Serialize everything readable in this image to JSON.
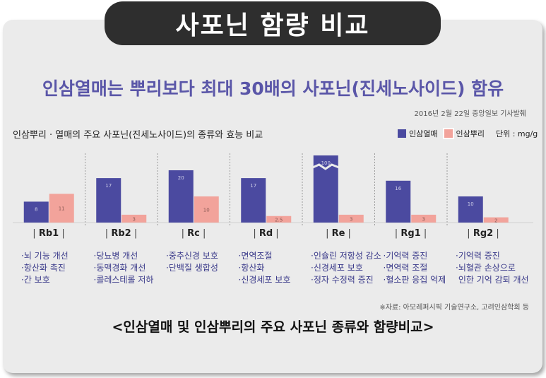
{
  "title": "사포닌 함량 비교",
  "headline": "인삼열매는 뿌리보다 최대 30배의 사포닌(진세노사이드) 함유",
  "source": "2016년 2월 22일 중앙일보 기사발췌",
  "subtitle": "인삼뿌리 · 열매의 주요 사포닌(진세노사이드)의 종류와 효능 비교",
  "unit": "단위 : mg/g",
  "colors": {
    "fruit": "#4b4aa0",
    "root": "#f2a39b"
  },
  "note": "※자료: 아모레퍼시픽 기술연구소, 고려인삼학회 등",
  "caption": "<인삼열매 및 인삼뿌리의 주요 사포닌 종류와 함량비교>",
  "chart_data": {
    "type": "bar",
    "categories": [
      "Rb1",
      "Rb2",
      "Rc",
      "Rd",
      "Re",
      "Rg1",
      "Rg2"
    ],
    "series": [
      {
        "name": "인삼열매",
        "values": [
          8,
          17,
          20,
          17,
          100,
          16,
          10
        ],
        "labels": [
          "8",
          "17",
          "20",
          "17",
          "100",
          "16",
          "10"
        ]
      },
      {
        "name": "인삼뿌리",
        "values": [
          11,
          3,
          10,
          2.5,
          3,
          3,
          2
        ],
        "labels": [
          "11",
          "3",
          "10",
          "2.5",
          "3",
          "3",
          "2"
        ]
      }
    ],
    "axis_break_on": "Re",
    "ylabel": "",
    "grid": false,
    "legend_position": "top-right"
  },
  "columns": [
    {
      "name": "Rb1",
      "effects": [
        "·뇌 기능 개선",
        "·항산화 촉진",
        "·간 보호"
      ]
    },
    {
      "name": "Rb2",
      "effects": [
        "·당뇨병 개선",
        "·동맥경화 개선",
        "·콜레스테롤 저하"
      ]
    },
    {
      "name": "Rc",
      "effects": [
        "·중추신경 보호",
        "·단백질 생합성"
      ]
    },
    {
      "name": "Rd",
      "effects": [
        "·면역조절",
        "·항산화",
        "·신경세포 보호"
      ]
    },
    {
      "name": "Re",
      "effects": [
        "·인슐린 저항성 감소",
        "·신경세포 보호",
        "·정자 수정력 증진"
      ]
    },
    {
      "name": "Rg1",
      "effects": [
        "·기억력 증진",
        "·면역력 조절",
        "·혈소판 응집 억제"
      ]
    },
    {
      "name": "Rg2",
      "effects": [
        "·기억력 증진",
        "·뇌혈관 손상으로",
        " 인한 기억 감퇴 개선"
      ]
    }
  ]
}
